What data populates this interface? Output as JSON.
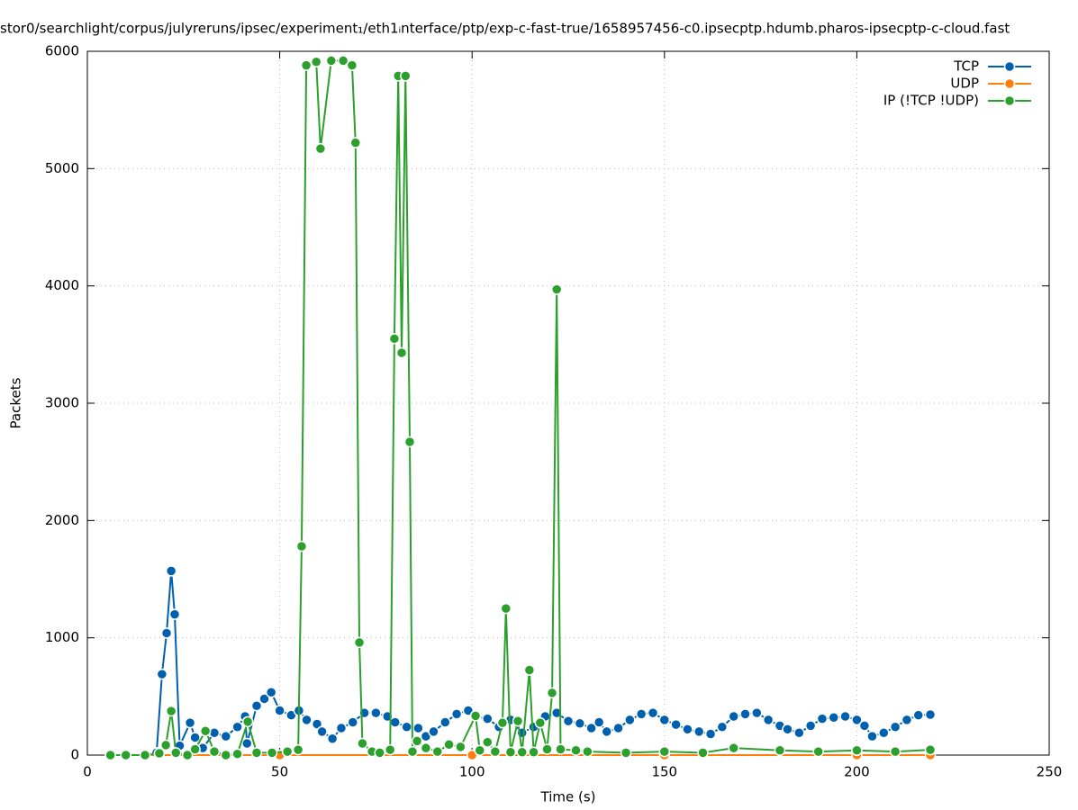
{
  "chart_data": {
    "type": "line",
    "title": "stor0/searchlight/corpus/julyreruns/ipsec/experiment₁/eth1ᵢnterface/ptp/exp-c-fast-true/1658957456-c0.ipsecptp.hdumb.pharos-ipsecptp-c-cloud.fast",
    "x_label": "Time (s)",
    "y_label": "Packets",
    "xlim": [
      0,
      250
    ],
    "xticks": [
      0,
      50,
      100,
      150,
      200,
      250
    ],
    "ylim": [
      0,
      6000
    ],
    "yticks": [
      0,
      1000,
      2000,
      3000,
      4000,
      5000,
      6000
    ],
    "grid": true,
    "legend": "top-right",
    "series": [
      {
        "name": "TCP",
        "color": "#0060ad",
        "x": [
          6,
          10,
          15,
          18,
          19.4,
          20.6,
          21.8,
          22.7,
          24,
          26.7,
          28,
          30,
          33,
          36,
          39,
          41,
          41.5,
          44,
          46,
          47.8,
          50,
          53,
          55,
          57,
          59.7,
          61,
          63.7,
          66,
          69,
          72,
          75,
          78,
          80,
          83,
          86,
          88,
          90,
          93,
          96,
          99,
          101,
          104,
          107,
          110,
          113,
          116,
          119,
          122,
          125,
          128,
          131,
          133,
          135,
          138,
          141,
          144,
          147,
          150,
          153,
          156,
          159,
          162,
          165,
          168,
          171,
          174,
          177,
          180,
          182,
          185,
          188,
          191,
          194,
          197,
          200,
          202,
          204,
          207,
          210,
          213,
          216,
          219.1
        ],
        "values": [
          0,
          0,
          0,
          20,
          690,
          1040,
          1570,
          1200,
          80,
          275,
          150,
          60,
          190,
          160,
          240,
          330,
          100,
          420,
          480,
          535,
          380,
          340,
          380,
          300,
          265,
          200,
          140,
          230,
          280,
          360,
          360,
          330,
          280,
          240,
          230,
          160,
          200,
          280,
          350,
          380,
          330,
          310,
          240,
          300,
          190,
          240,
          330,
          360,
          290,
          270,
          230,
          280,
          200,
          230,
          300,
          350,
          360,
          300,
          260,
          220,
          200,
          180,
          240,
          330,
          350,
          360,
          300,
          250,
          220,
          190,
          250,
          310,
          320,
          330,
          300,
          250,
          160,
          190,
          240,
          300,
          340,
          345
        ]
      },
      {
        "name": "UDP",
        "color": "#ff7f0e",
        "x": [
          6,
          50,
          100,
          150,
          200,
          219.1
        ],
        "values": [
          0,
          0,
          0,
          0,
          0,
          0
        ]
      },
      {
        "name": "IP (!TCP  !UDP)",
        "color": "#2ca02c",
        "x": [
          6,
          10,
          15,
          18.7,
          20.4,
          21.8,
          23,
          26,
          28,
          30.7,
          33,
          36,
          39,
          41.7,
          44,
          48,
          52,
          54.8,
          55.7,
          56.9,
          59.5,
          60.6,
          63.4,
          66.5,
          68.8,
          69.7,
          70.7,
          71.5,
          74,
          76,
          78.7,
          79.8,
          80.8,
          81.7,
          82.7,
          83.8,
          84.5,
          85.7,
          88,
          91,
          94,
          97,
          100.9,
          102,
          104,
          106,
          107.9,
          108.8,
          110,
          111.9,
          113,
          114.9,
          116,
          117.7,
          119.5,
          120.8,
          122,
          123,
          127,
          130,
          140,
          150,
          160,
          168,
          180,
          190,
          200,
          210,
          219.1
        ],
        "values": [
          0,
          0,
          0,
          15,
          85,
          375,
          20,
          0,
          50,
          205,
          30,
          0,
          10,
          285,
          20,
          20,
          30,
          45,
          1780,
          5880,
          5910,
          5170,
          5920,
          5920,
          5880,
          5220,
          960,
          100,
          30,
          20,
          45,
          3550,
          5790,
          3430,
          5790,
          2670,
          30,
          120,
          60,
          30,
          90,
          70,
          335,
          40,
          110,
          30,
          275,
          1250,
          25,
          290,
          25,
          725,
          25,
          275,
          50,
          530,
          3970,
          50,
          40,
          30,
          20,
          30,
          20,
          60,
          40,
          30,
          40,
          30,
          45
        ]
      }
    ]
  }
}
